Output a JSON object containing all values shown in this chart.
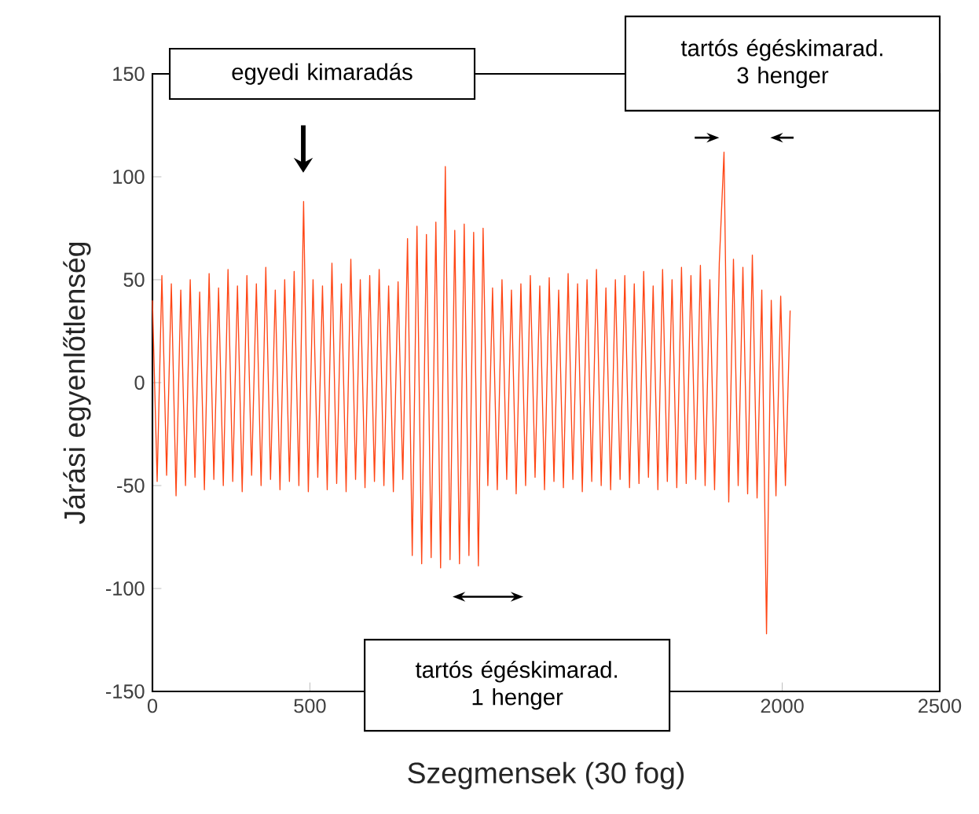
{
  "chart_data": {
    "type": "line",
    "xlabel": "Szegmensek (30 fog)",
    "ylabel": "Járási egyenlőtlenség",
    "annotations": [
      "egyedi kimaradás",
      "tartós égéskimarad. 3 henger",
      "tartós égéskimarad. 1 henger"
    ],
    "xlim": [
      0,
      2500
    ],
    "ylim": [
      -150,
      150
    ],
    "xticks": [
      0,
      500,
      2000,
      2500
    ],
    "yticks": [
      -150,
      -100,
      -50,
      0,
      50,
      100,
      150
    ],
    "grid": false,
    "marker": "none",
    "line_style": "solid",
    "series": [
      {
        "color": "#ff4514",
        "x": [
          0,
          15,
          30,
          45,
          60,
          75,
          90,
          105,
          120,
          135,
          150,
          165,
          180,
          195,
          210,
          225,
          240,
          255,
          270,
          285,
          300,
          315,
          330,
          345,
          360,
          375,
          390,
          405,
          420,
          435,
          450,
          465,
          480,
          495,
          510,
          525,
          540,
          555,
          570,
          585,
          600,
          615,
          630,
          645,
          660,
          675,
          690,
          705,
          720,
          735,
          750,
          765,
          780,
          795,
          810,
          825,
          840,
          855,
          870,
          885,
          900,
          915,
          930,
          945,
          960,
          975,
          990,
          1005,
          1020,
          1035,
          1050,
          1065,
          1080,
          1095,
          1110,
          1125,
          1140,
          1155,
          1170,
          1185,
          1200,
          1215,
          1230,
          1245,
          1260,
          1275,
          1290,
          1305,
          1320,
          1335,
          1350,
          1365,
          1380,
          1395,
          1410,
          1425,
          1440,
          1455,
          1470,
          1485,
          1500,
          1515,
          1530,
          1545,
          1560,
          1575,
          1590,
          1605,
          1620,
          1635,
          1650,
          1665,
          1680,
          1695,
          1710,
          1725,
          1740,
          1755,
          1770,
          1785,
          1800,
          1815,
          1830,
          1845,
          1860,
          1875,
          1890,
          1905,
          1920,
          1935,
          1950,
          1965,
          1980,
          1995,
          2010,
          2025
        ],
        "values": [
          40,
          -48,
          52,
          -45,
          48,
          -55,
          45,
          -50,
          50,
          -46,
          44,
          -52,
          53,
          -47,
          46,
          -50,
          55,
          -48,
          47,
          -53,
          52,
          -45,
          48,
          -50,
          56,
          -47,
          45,
          -52,
          50,
          -48,
          54,
          -50,
          88,
          -53,
          50,
          -46,
          47,
          -52,
          58,
          -49,
          48,
          -53,
          60,
          -47,
          50,
          -51,
          52,
          -48,
          55,
          -50,
          47,
          -53,
          49,
          -47,
          70,
          -84,
          76,
          -88,
          72,
          -85,
          78,
          -90,
          105,
          -86,
          74,
          -88,
          77,
          -84,
          73,
          -89,
          75,
          -50,
          46,
          -52,
          50,
          -47,
          45,
          -54,
          48,
          -50,
          52,
          -46,
          47,
          -52,
          51,
          -48,
          45,
          -51,
          53,
          -47,
          48,
          -53,
          50,
          -48,
          55,
          -50,
          46,
          -52,
          50,
          -47,
          52,
          -51,
          48,
          -49,
          54,
          -46,
          47,
          -52,
          55,
          -48,
          50,
          -51,
          56,
          -49,
          52,
          -47,
          57,
          -50,
          50,
          -52,
          58,
          112,
          -58,
          60,
          -50,
          56,
          -54,
          62,
          -56,
          45,
          -122,
          40,
          -55,
          42,
          -50,
          35
        ]
      }
    ]
  }
}
